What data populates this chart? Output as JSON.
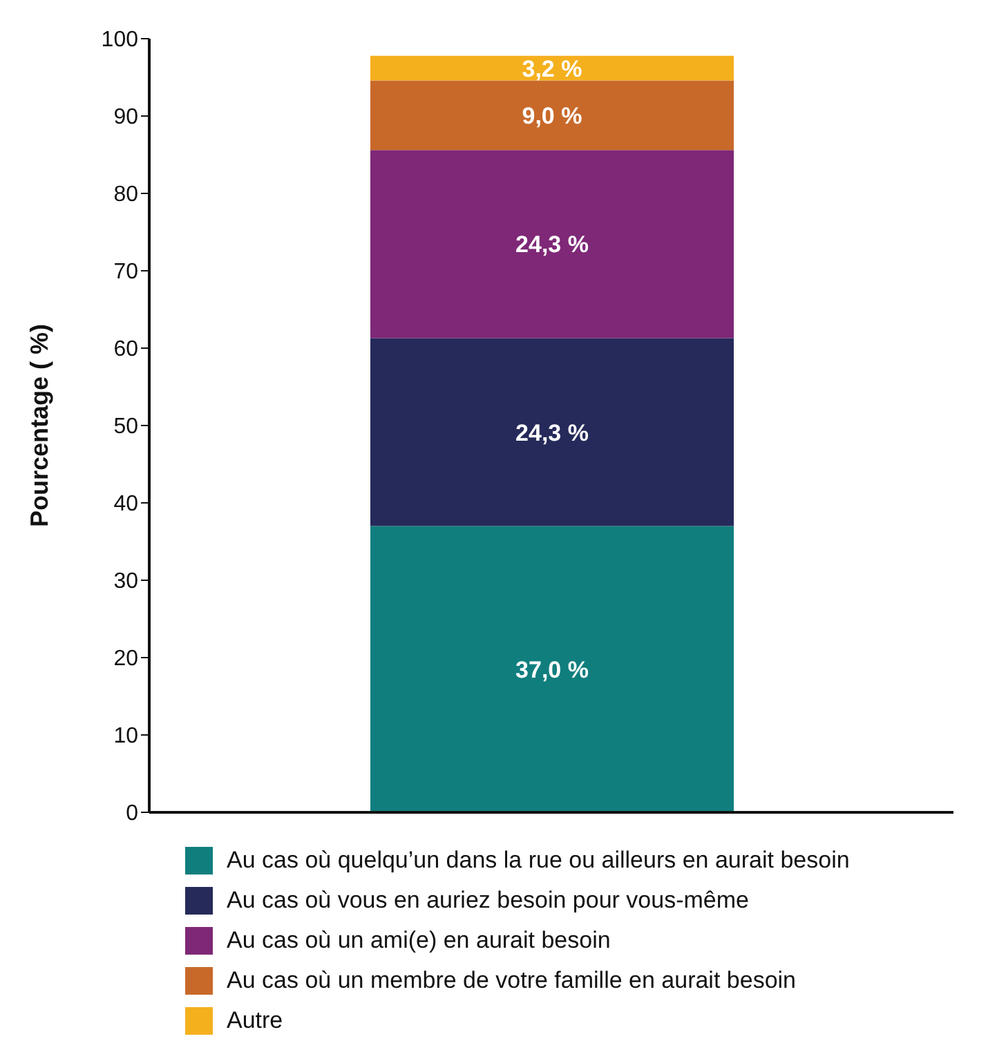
{
  "chart_data": {
    "type": "bar",
    "stacked": true,
    "ylabel": "Pourcentage ( %)",
    "categories": [
      null
    ],
    "ylim": [
      0,
      100
    ],
    "yticks": [
      0,
      10,
      20,
      30,
      40,
      50,
      60,
      70,
      80,
      90,
      100
    ],
    "grid": false,
    "legend": "bottom",
    "tick_labels": "y",
    "series": [
      {
        "name": "Au cas où quelqu’un dans la rue ou ailleurs en aurait besoin",
        "color": "#117e7e",
        "values": [
          37.0
        ],
        "value_labels": [
          "37,0 %"
        ]
      },
      {
        "name": "Au cas où vous en auriez besoin pour vous-même",
        "color": "#252a5a",
        "values": [
          24.3
        ],
        "value_labels": [
          "24,3 %"
        ]
      },
      {
        "name": "Au cas où un ami(e) en aurait besoin",
        "color": "#7e2877",
        "values": [
          24.3
        ],
        "value_labels": [
          "24,3 %"
        ]
      },
      {
        "name": "Au cas où un membre de votre famille en aurait besoin",
        "color": "#c8692a",
        "values": [
          9.0
        ],
        "value_labels": [
          "9,0 %"
        ]
      },
      {
        "name": "Autre",
        "color": "#f5b01e",
        "values": [
          3.2
        ],
        "value_labels": [
          "3,2 %"
        ]
      }
    ]
  }
}
